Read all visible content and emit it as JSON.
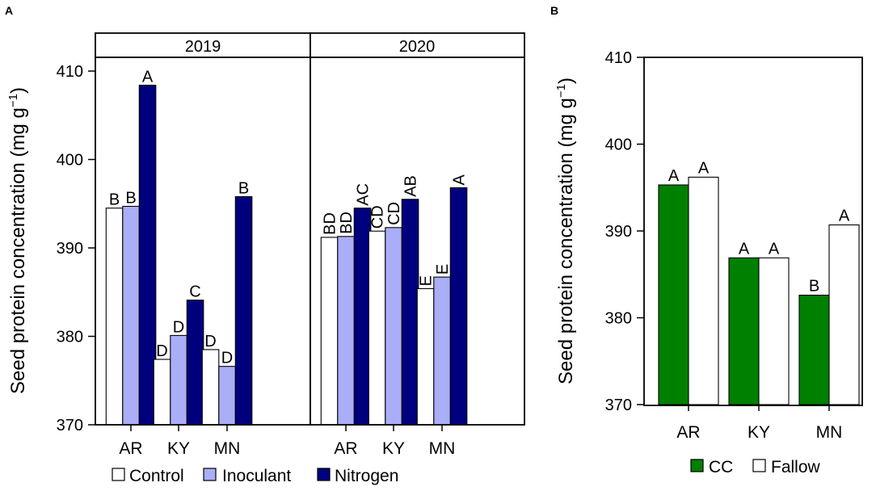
{
  "chart_data": [
    {
      "panel": "A",
      "type": "bar",
      "ylabel_main": "Seed protein concentration (mg g",
      "ylabel_sup": "−1",
      "ylabel_tail": ")",
      "ylim": [
        370,
        414
      ],
      "yticks": [
        "370",
        "380",
        "390",
        "400",
        "410"
      ],
      "legend_position": "bottom",
      "legend": [
        {
          "label": "Control",
          "color": "#ffffff"
        },
        {
          "label": "Inoculant",
          "color": "#a9aef7"
        },
        {
          "label": "Nitrogen",
          "color": "#00007f"
        }
      ],
      "facets": [
        {
          "title": "2019",
          "categories": [
            "AR",
            "KY",
            "MN"
          ],
          "series": [
            {
              "name": "Control",
              "values": [
                394.5,
                377.4,
                378.5
              ],
              "letters": [
                "B",
                "D",
                "D"
              ]
            },
            {
              "name": "Inoculant",
              "values": [
                394.7,
                380.1,
                376.6
              ],
              "letters": [
                "B",
                "D",
                "D"
              ]
            },
            {
              "name": "Nitrogen",
              "values": [
                408.4,
                384.1,
                395.8
              ],
              "letters": [
                "A",
                "C",
                "B"
              ]
            }
          ]
        },
        {
          "title": "2020",
          "categories": [
            "AR",
            "KY",
            "MN"
          ],
          "series": [
            {
              "name": "Control",
              "values": [
                391.2,
                391.9,
                385.4
              ],
              "letters": [
                "BD",
                "CD",
                "E"
              ]
            },
            {
              "name": "Inoculant",
              "values": [
                391.3,
                392.3,
                386.7
              ],
              "letters": [
                "BD",
                "CD",
                "E"
              ]
            },
            {
              "name": "Nitrogen",
              "values": [
                394.5,
                395.5,
                396.8
              ],
              "letters": [
                "AC",
                "AB",
                "A"
              ]
            }
          ]
        }
      ]
    },
    {
      "panel": "B",
      "type": "bar",
      "ylabel_main": "Seed protein concentration (mg g",
      "ylabel_sup": "−1",
      "ylabel_tail": ")",
      "ylim": [
        370,
        410
      ],
      "yticks": [
        "370",
        "380",
        "390",
        "400",
        "410"
      ],
      "legend_position": "bottom",
      "categories": [
        "AR",
        "KY",
        "MN"
      ],
      "legend": [
        {
          "label": "CC",
          "color": "#008000"
        },
        {
          "label": "Fallow",
          "color": "#ffffff"
        }
      ],
      "series": [
        {
          "name": "CC",
          "values": [
            395.3,
            386.9,
            382.6
          ],
          "letters": [
            "A",
            "A",
            "B"
          ]
        },
        {
          "name": "Fallow",
          "values": [
            396.2,
            386.9,
            390.7
          ],
          "letters": [
            "A",
            "A",
            "A"
          ]
        }
      ]
    }
  ]
}
